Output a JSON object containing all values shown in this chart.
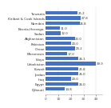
{
  "categories": [
    "Tanzania",
    "Kiribati & Cook Islands",
    "Namibia",
    "Bosnia-Herzego.",
    "Sudan",
    "Afghanistan",
    "Pakistan",
    "Oman",
    "Micronesia",
    "Libya",
    "Uzbekistan",
    "Kuwait",
    "Jordan",
    "Iraq",
    "Egypt",
    "Djibouti"
  ],
  "values": [
    25.2,
    27.8,
    26.8,
    11.0,
    12.0,
    23.0,
    20.0,
    23.2,
    17.0,
    26.1,
    39.9,
    25.8,
    26.0,
    20.0,
    26.0,
    14.8
  ],
  "bar_color": "#4472c4",
  "xlim": [
    0,
    45
  ],
  "tick_fontsize": 3.2,
  "label_fontsize": 3.0,
  "value_fontsize": 2.8,
  "background_color": "#ffffff"
}
